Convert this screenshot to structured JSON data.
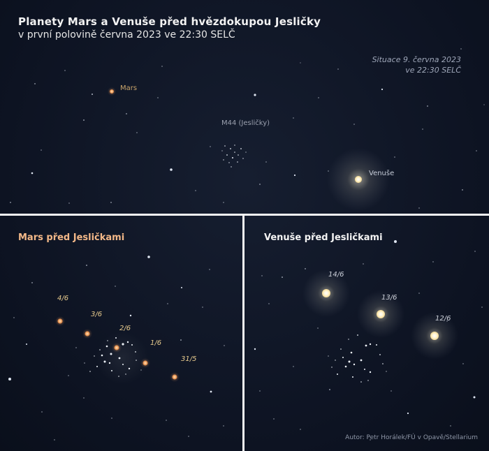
{
  "title": "Planety Mars a Venuše před hvězdokupou Jesličky",
  "subtitle": "v první polovině června 2023 ve 22:30 SELČ",
  "situation": {
    "line1": "Situace 9. června 2023",
    "line2": "ve 22:30 SELČ"
  },
  "top_labels": {
    "mars": "Mars",
    "cluster": "M44 (Jesličky)",
    "venus": "Venuše"
  },
  "mars_panel": {
    "title": "Mars před Jesličkami",
    "dates": [
      "4/6",
      "3/6",
      "2/6",
      "1/6",
      "31/5"
    ]
  },
  "venus_panel": {
    "title": "Venuše před Jesličkami",
    "dates": [
      "14/6",
      "13/6",
      "12/6"
    ]
  },
  "credit": "Autor: Petr Horálek/FÚ v Opavě/Stellarium",
  "colors": {
    "mars_label": "#c9a46a",
    "mars_panel_title": "#f3b888",
    "cluster_label": "#9aa0ae",
    "venus_label": "#c6ccd8",
    "date_mars": "#e9cc8e",
    "date_venus": "#cfd3dc",
    "divider": "#f4f4f4"
  }
}
